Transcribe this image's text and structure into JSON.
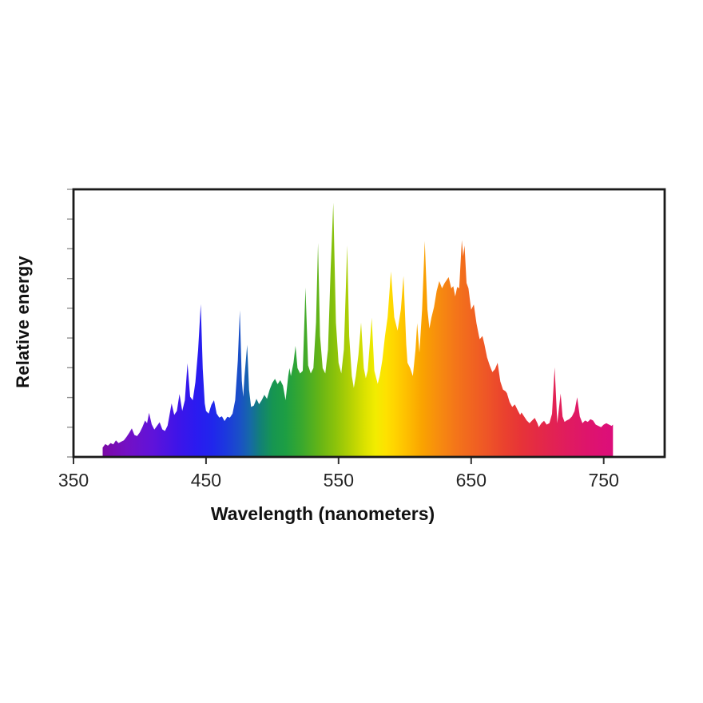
{
  "chart_data": {
    "type": "area",
    "title": "",
    "xlabel": "Wavelength (nanometers)",
    "ylabel": "Relative energy",
    "x_range": [
      350,
      796
    ],
    "y_range": [
      0,
      1
    ],
    "grid": false,
    "legend": "none",
    "x_ticks": [
      350,
      450,
      550,
      650,
      750
    ],
    "x_tick_labels": [
      "350",
      "450",
      "550",
      "650",
      "750"
    ],
    "y_tick_divisions": 9,
    "frame_color": "#1a1a1a",
    "y_tick_color": "#909090",
    "x_tick_color": "#333333",
    "description": "Spectral power distribution of a lamp: jagged emission-line spectrum filled with a rainbow gradient by wavelength, spanning ~372-757 nm",
    "points": [
      [
        372,
        0.035
      ],
      [
        374,
        0.048
      ],
      [
        376,
        0.042
      ],
      [
        378,
        0.052
      ],
      [
        380,
        0.047
      ],
      [
        382,
        0.062
      ],
      [
        384,
        0.052
      ],
      [
        386,
        0.057
      ],
      [
        388,
        0.062
      ],
      [
        390,
        0.075
      ],
      [
        392,
        0.09
      ],
      [
        394,
        0.107
      ],
      [
        396,
        0.082
      ],
      [
        398,
        0.078
      ],
      [
        400,
        0.092
      ],
      [
        402,
        0.112
      ],
      [
        404,
        0.136
      ],
      [
        405.5,
        0.126
      ],
      [
        407,
        0.165
      ],
      [
        409,
        0.122
      ],
      [
        411,
        0.102
      ],
      [
        413,
        0.116
      ],
      [
        415,
        0.13
      ],
      [
        417,
        0.103
      ],
      [
        419,
        0.097
      ],
      [
        421,
        0.117
      ],
      [
        424,
        0.2
      ],
      [
        426,
        0.157
      ],
      [
        428,
        0.172
      ],
      [
        430,
        0.235
      ],
      [
        432,
        0.172
      ],
      [
        434,
        0.212
      ],
      [
        436,
        0.35
      ],
      [
        438,
        0.225
      ],
      [
        440,
        0.212
      ],
      [
        442,
        0.28
      ],
      [
        444,
        0.4
      ],
      [
        446,
        0.571
      ],
      [
        447.5,
        0.33
      ],
      [
        449,
        0.2
      ],
      [
        450,
        0.172
      ],
      [
        452,
        0.162
      ],
      [
        454,
        0.195
      ],
      [
        456,
        0.212
      ],
      [
        458,
        0.162
      ],
      [
        460,
        0.147
      ],
      [
        462,
        0.152
      ],
      [
        464,
        0.134
      ],
      [
        466,
        0.15
      ],
      [
        468,
        0.147
      ],
      [
        470,
        0.162
      ],
      [
        472,
        0.212
      ],
      [
        474,
        0.36
      ],
      [
        475.5,
        0.548
      ],
      [
        477,
        0.285
      ],
      [
        478,
        0.225
      ],
      [
        479,
        0.3
      ],
      [
        481,
        0.419
      ],
      [
        482.5,
        0.25
      ],
      [
        484,
        0.187
      ],
      [
        486,
        0.192
      ],
      [
        488,
        0.217
      ],
      [
        490,
        0.197
      ],
      [
        492,
        0.212
      ],
      [
        494,
        0.232
      ],
      [
        496,
        0.217
      ],
      [
        498,
        0.252
      ],
      [
        500,
        0.277
      ],
      [
        502,
        0.292
      ],
      [
        504,
        0.272
      ],
      [
        506,
        0.287
      ],
      [
        508,
        0.267
      ],
      [
        510,
        0.212
      ],
      [
        512,
        0.302
      ],
      [
        513,
        0.332
      ],
      [
        514,
        0.302
      ],
      [
        516,
        0.352
      ],
      [
        517.5,
        0.415
      ],
      [
        519,
        0.332
      ],
      [
        521,
        0.312
      ],
      [
        523,
        0.322
      ],
      [
        525,
        0.633
      ],
      [
        527,
        0.342
      ],
      [
        529,
        0.312
      ],
      [
        531,
        0.332
      ],
      [
        533,
        0.502
      ],
      [
        534.5,
        0.8
      ],
      [
        536,
        0.452
      ],
      [
        538,
        0.332
      ],
      [
        540,
        0.312
      ],
      [
        542,
        0.402
      ],
      [
        544,
        0.702
      ],
      [
        546,
        0.95
      ],
      [
        548,
        0.502
      ],
      [
        550,
        0.352
      ],
      [
        552,
        0.312
      ],
      [
        554,
        0.402
      ],
      [
        556.5,
        0.79
      ],
      [
        558,
        0.452
      ],
      [
        560,
        0.302
      ],
      [
        561.5,
        0.258
      ],
      [
        563,
        0.302
      ],
      [
        565,
        0.382
      ],
      [
        567,
        0.502
      ],
      [
        569,
        0.332
      ],
      [
        570.5,
        0.294
      ],
      [
        572,
        0.322
      ],
      [
        573.5,
        0.42
      ],
      [
        575,
        0.52
      ],
      [
        577,
        0.322
      ],
      [
        579.5,
        0.273
      ],
      [
        581,
        0.302
      ],
      [
        583,
        0.362
      ],
      [
        585,
        0.451
      ],
      [
        587,
        0.522
      ],
      [
        589.5,
        0.693
      ],
      [
        592,
        0.522
      ],
      [
        594.5,
        0.472
      ],
      [
        597,
        0.552
      ],
      [
        599,
        0.676
      ],
      [
        601,
        0.422
      ],
      [
        602,
        0.352
      ],
      [
        604,
        0.332
      ],
      [
        606,
        0.302
      ],
      [
        608,
        0.4
      ],
      [
        609.3,
        0.5
      ],
      [
        611,
        0.39
      ],
      [
        613,
        0.552
      ],
      [
        615,
        0.807
      ],
      [
        617,
        0.552
      ],
      [
        618.5,
        0.48
      ],
      [
        620,
        0.52
      ],
      [
        622,
        0.56
      ],
      [
        624,
        0.62
      ],
      [
        626,
        0.657
      ],
      [
        628,
        0.63
      ],
      [
        630,
        0.65
      ],
      [
        633,
        0.672
      ],
      [
        635,
        0.63
      ],
      [
        636.5,
        0.638
      ],
      [
        638,
        0.6
      ],
      [
        639.5,
        0.635
      ],
      [
        641,
        0.63
      ],
      [
        643,
        0.81
      ],
      [
        644,
        0.75
      ],
      [
        645,
        0.79
      ],
      [
        646.5,
        0.65
      ],
      [
        648,
        0.63
      ],
      [
        650,
        0.55
      ],
      [
        652,
        0.57
      ],
      [
        654,
        0.5
      ],
      [
        656,
        0.45
      ],
      [
        656.5,
        0.44
      ],
      [
        658.5,
        0.452
      ],
      [
        660,
        0.422
      ],
      [
        662,
        0.372
      ],
      [
        664,
        0.342
      ],
      [
        666,
        0.317
      ],
      [
        668,
        0.328
      ],
      [
        670,
        0.352
      ],
      [
        672,
        0.282
      ],
      [
        674,
        0.252
      ],
      [
        676,
        0.245
      ],
      [
        677,
        0.238
      ],
      [
        679,
        0.205
      ],
      [
        681,
        0.187
      ],
      [
        683,
        0.196
      ],
      [
        685,
        0.176
      ],
      [
        687,
        0.157
      ],
      [
        688,
        0.166
      ],
      [
        690,
        0.151
      ],
      [
        692,
        0.136
      ],
      [
        694,
        0.126
      ],
      [
        696,
        0.136
      ],
      [
        698,
        0.146
      ],
      [
        700,
        0.126
      ],
      [
        701,
        0.111
      ],
      [
        703,
        0.126
      ],
      [
        705,
        0.135
      ],
      [
        707,
        0.121
      ],
      [
        709,
        0.126
      ],
      [
        711,
        0.161
      ],
      [
        713,
        0.335
      ],
      [
        715,
        0.126
      ],
      [
        717.5,
        0.237
      ],
      [
        719,
        0.151
      ],
      [
        720.5,
        0.131
      ],
      [
        722,
        0.136
      ],
      [
        724,
        0.141
      ],
      [
        726,
        0.151
      ],
      [
        728,
        0.171
      ],
      [
        730,
        0.223
      ],
      [
        732,
        0.151
      ],
      [
        734,
        0.126
      ],
      [
        736,
        0.136
      ],
      [
        738,
        0.131
      ],
      [
        740,
        0.141
      ],
      [
        742,
        0.136
      ],
      [
        744,
        0.121
      ],
      [
        746,
        0.116
      ],
      [
        748,
        0.111
      ],
      [
        750,
        0.121
      ],
      [
        752,
        0.126
      ],
      [
        754,
        0.121
      ],
      [
        756,
        0.116
      ],
      [
        757,
        0.121
      ]
    ],
    "gradient_stops": [
      [
        372,
        "#7b0aa6"
      ],
      [
        390,
        "#7410c4"
      ],
      [
        410,
        "#5f13da"
      ],
      [
        428,
        "#3f14e8"
      ],
      [
        443,
        "#2a1bf0"
      ],
      [
        455,
        "#2026ec"
      ],
      [
        465,
        "#1c38de"
      ],
      [
        475,
        "#1a4fc8"
      ],
      [
        483,
        "#1668a8"
      ],
      [
        491,
        "#128077"
      ],
      [
        500,
        "#169552"
      ],
      [
        510,
        "#1d9e43"
      ],
      [
        522,
        "#39a82e"
      ],
      [
        535,
        "#63b417"
      ],
      [
        548,
        "#8dc30a"
      ],
      [
        560,
        "#b8d303"
      ],
      [
        570,
        "#dce200"
      ],
      [
        578,
        "#f2ec00"
      ],
      [
        586,
        "#fee100"
      ],
      [
        594,
        "#ffd000"
      ],
      [
        603,
        "#fdbb00"
      ],
      [
        613,
        "#faa300"
      ],
      [
        625,
        "#f78d0e"
      ],
      [
        638,
        "#f47619"
      ],
      [
        650,
        "#f16520"
      ],
      [
        662,
        "#ee5527"
      ],
      [
        675,
        "#ea422e"
      ],
      [
        688,
        "#e73338"
      ],
      [
        700,
        "#e42a45"
      ],
      [
        712,
        "#e22253"
      ],
      [
        724,
        "#e01b60"
      ],
      [
        738,
        "#de146c"
      ],
      [
        750,
        "#dd1076"
      ],
      [
        757,
        "#dc0e7a"
      ]
    ]
  }
}
